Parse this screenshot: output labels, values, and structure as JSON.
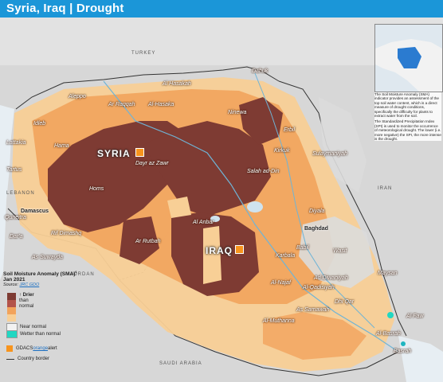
{
  "title": "Syria, Iraq | Drought",
  "countries": {
    "turkey": "TURKEY",
    "iran": "IRAN",
    "lebanon": "LEBANON",
    "jordan": "JORDAN",
    "saudi": "SAUDI ARABIA",
    "syria": "SYRIA",
    "iraq": "IRAQ"
  },
  "cities": [
    {
      "name": "Al Hasakah"
    },
    {
      "name": "Ar Raqqah"
    },
    {
      "name": "Aleppo"
    },
    {
      "name": "Al-Hasaka"
    },
    {
      "name": "Dahuk"
    },
    {
      "name": "Ninewa"
    },
    {
      "name": "Erbil"
    },
    {
      "name": "Lattakia"
    },
    {
      "name": "Idleb"
    },
    {
      "name": "Hama"
    },
    {
      "name": "Tartus"
    },
    {
      "name": "Homs"
    },
    {
      "name": "Dayr az Zawr"
    },
    {
      "name": "Kirkuk"
    },
    {
      "name": "Sulaymaniyah"
    },
    {
      "name": "Salah ad-Din"
    },
    {
      "name": "Ar Rutbah"
    },
    {
      "name": "Damascus"
    },
    {
      "name": "Rif Dimashq"
    },
    {
      "name": "As Suwayda"
    },
    {
      "name": "Dar'a"
    },
    {
      "name": "Al Anbar"
    },
    {
      "name": "Diyala"
    },
    {
      "name": "Baghdad"
    },
    {
      "name": "Babil"
    },
    {
      "name": "Wasit"
    },
    {
      "name": "Karbala"
    },
    {
      "name": "Ad Diwaniyah"
    },
    {
      "name": "Al-Qadisiyah"
    },
    {
      "name": "Maysan"
    },
    {
      "name": "Dhi Qar"
    },
    {
      "name": "Al-Najaf"
    },
    {
      "name": "Al-Muthanna"
    },
    {
      "name": "As Samawah"
    },
    {
      "name": "Al-Basrah"
    },
    {
      "name": "Basrah"
    },
    {
      "name": "Al Faw"
    },
    {
      "name": "Quneitra"
    }
  ],
  "inset_text": {
    "sma": "The Soil Moisture Anomaly (SMA) indicator provides an assessment of the top soil water content, which is a direct measure of drought conditions, specifically the difficulty for plants to extract water from the soil.",
    "spi": "The Standardized Precipitation Index (SPI) is used to monitor the occurrence of meteorological drought. The lower (i.e. more negative) the SPI, the more intense is the drought."
  },
  "legend": {
    "title": "Soil Moisture Anomaly (SMA)",
    "sup": "1",
    "date": "Jan 2021",
    "source_prefix": "Source: ",
    "source_link": "JRC GDO",
    "drier": "Drier",
    "than": "than",
    "normal": "normal",
    "near_normal": "Near normal",
    "wetter": "Wetter than normal",
    "gdacs_prefix": "GDACS ",
    "gdacs_link": "orange",
    "gdacs_suffix": " alert",
    "border": "Country border",
    "colors": {
      "severe": "#7e3b33",
      "strong": "#b3534a",
      "moderate": "#f2a35c",
      "mild": "#f8cf96",
      "near": "#21d7c2",
      "wetter": "#1fb5c0",
      "land": "#dcdcdc"
    }
  }
}
